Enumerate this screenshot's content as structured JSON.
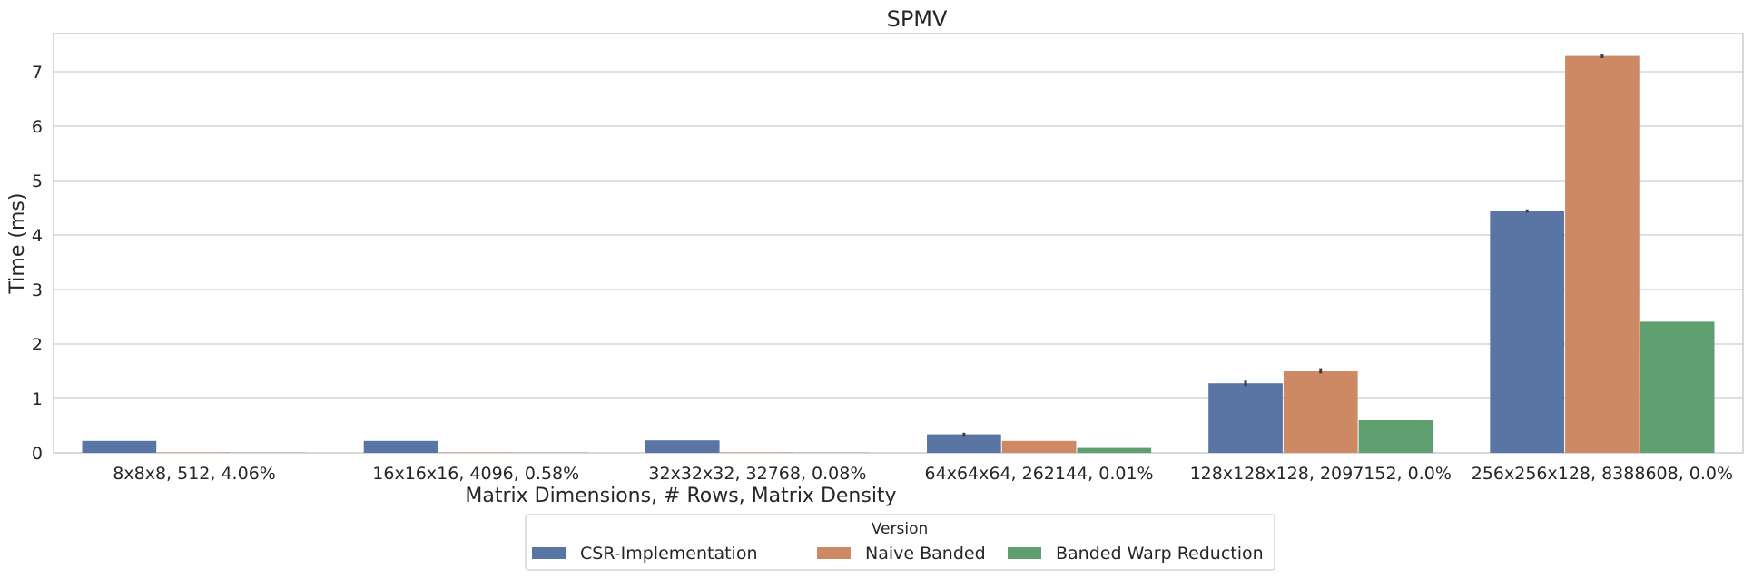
{
  "chart_data": {
    "type": "bar",
    "title": "SPMV",
    "xlabel": "Matrix Dimensions, # Rows, Matrix Density",
    "ylabel": "Time (ms)",
    "ylim": [
      0,
      7.7
    ],
    "yticks": [
      "0",
      "1",
      "2",
      "3",
      "4",
      "5",
      "6",
      "7"
    ],
    "grid": true,
    "categories": [
      "8x8x8, 512, 4.06%",
      "16x16x16, 4096, 0.58%",
      "32x32x32, 32768, 0.08%",
      "64x64x64, 262144, 0.01%",
      "128x128x128, 2097152, 0.0%",
      "256x256x128, 8388608, 0.0%"
    ],
    "legend": {
      "title": "Version",
      "placement": "bottom-center"
    },
    "series": [
      {
        "name": "CSR-Implementation",
        "color": "#5975a4",
        "values": [
          0.22,
          0.22,
          0.23,
          0.34,
          1.28,
          4.44
        ],
        "err": [
          0,
          0,
          0,
          0.03,
          0.05,
          0.03
        ]
      },
      {
        "name": "Naive Banded",
        "color": "#cc8963",
        "values": [
          0.01,
          0.01,
          0.01,
          0.22,
          1.5,
          7.29
        ],
        "err": [
          0,
          0,
          0,
          0,
          0.04,
          0.04
        ]
      },
      {
        "name": "Banded Warp Reduction",
        "color": "#5f9e6e",
        "values": [
          0.005,
          0.005,
          0.005,
          0.09,
          0.6,
          2.41
        ],
        "err": [
          0,
          0,
          0,
          0,
          0,
          0
        ]
      }
    ]
  }
}
